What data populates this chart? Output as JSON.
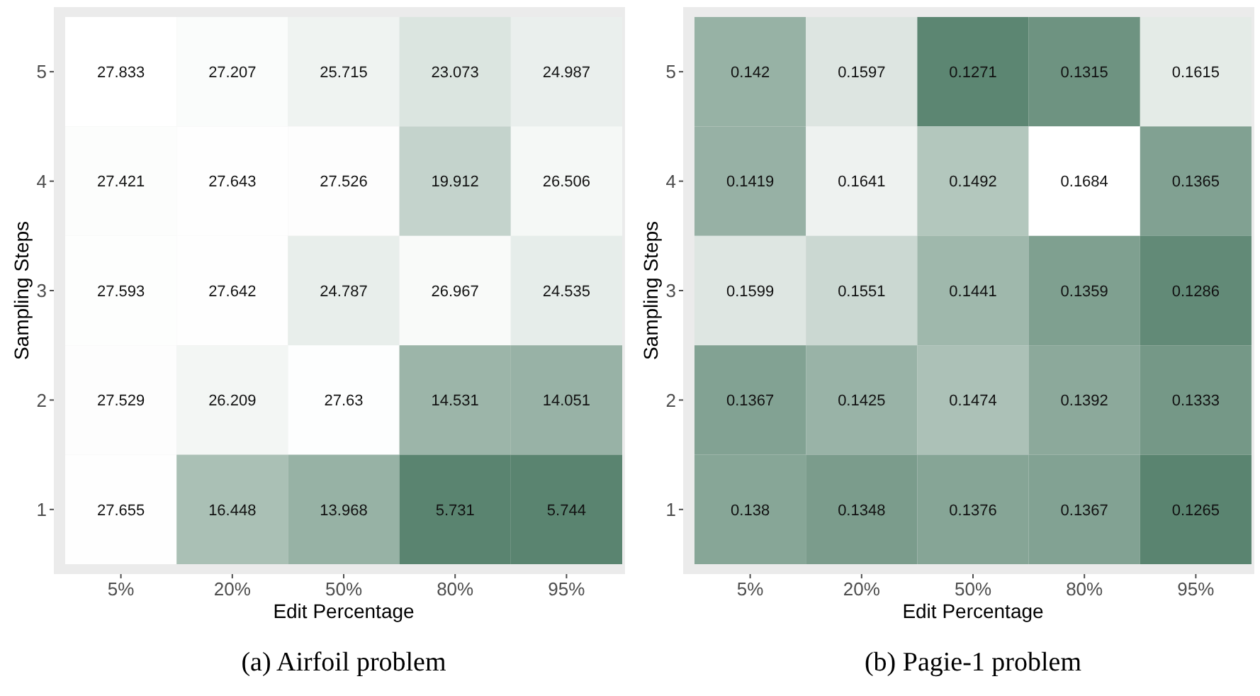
{
  "chart_data": [
    {
      "type": "heatmap",
      "title": "(a) Airfoil problem",
      "xlabel": "Edit Percentage",
      "ylabel": "Sampling Steps",
      "data_labels": true,
      "categories": [
        "5%",
        "20%",
        "50%",
        "80%",
        "95%"
      ],
      "y_categories": [
        "5",
        "4",
        "3",
        "2",
        "1"
      ],
      "cells": [
        [
          27.833,
          27.207,
          25.715,
          23.073,
          24.987
        ],
        [
          27.421,
          27.643,
          27.526,
          19.912,
          26.506
        ],
        [
          27.593,
          27.642,
          24.787,
          26.967,
          24.535
        ],
        [
          27.529,
          26.209,
          27.63,
          14.531,
          14.051
        ],
        [
          27.655,
          16.448,
          13.968,
          5.731,
          5.744
        ]
      ]
    },
    {
      "type": "heatmap",
      "title": "(b) Pagie-1 problem",
      "xlabel": "Edit Percentage",
      "ylabel": "Sampling Steps",
      "data_labels": true,
      "categories": [
        "5%",
        "20%",
        "50%",
        "80%",
        "95%"
      ],
      "y_categories": [
        "5",
        "4",
        "3",
        "2",
        "1"
      ],
      "cells": [
        [
          0.142,
          0.1597,
          0.1271,
          0.1315,
          0.1615
        ],
        [
          0.1419,
          0.1641,
          0.1492,
          0.1684,
          0.1365
        ],
        [
          0.1599,
          0.1551,
          0.1441,
          0.1359,
          0.1286
        ],
        [
          0.1367,
          0.1425,
          0.1474,
          0.1392,
          0.1333
        ],
        [
          0.138,
          0.1348,
          0.1376,
          0.1367,
          0.1265
        ]
      ]
    }
  ]
}
